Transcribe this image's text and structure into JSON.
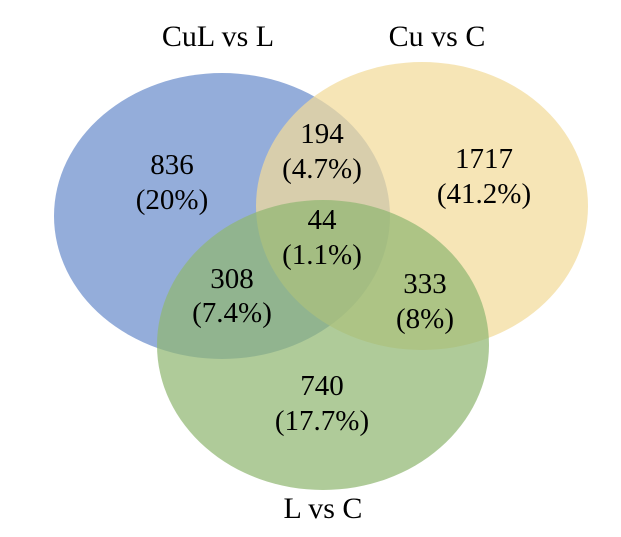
{
  "sets": [
    {
      "key": "A",
      "label": "CuL vs L",
      "color": "#8EA9D8"
    },
    {
      "key": "B",
      "label": "Cu vs C",
      "color": "#F3DB9A"
    },
    {
      "key": "C",
      "label": "L vs C",
      "color": "#90B772"
    }
  ],
  "regions": {
    "a_only": {
      "count": "836",
      "percent": "(20%)"
    },
    "ab_only": {
      "count": "194",
      "percent": "(4.7%)"
    },
    "b_only": {
      "count": "1717",
      "percent": "(41.2%)"
    },
    "abc": {
      "count": "44",
      "percent": "(1.1%)"
    },
    "ac_only": {
      "count": "308",
      "percent": "(7.4%)"
    },
    "bc_only": {
      "count": "333",
      "percent": "(8%)"
    },
    "c_only": {
      "count": "740",
      "percent": "(17.7%)"
    }
  }
}
